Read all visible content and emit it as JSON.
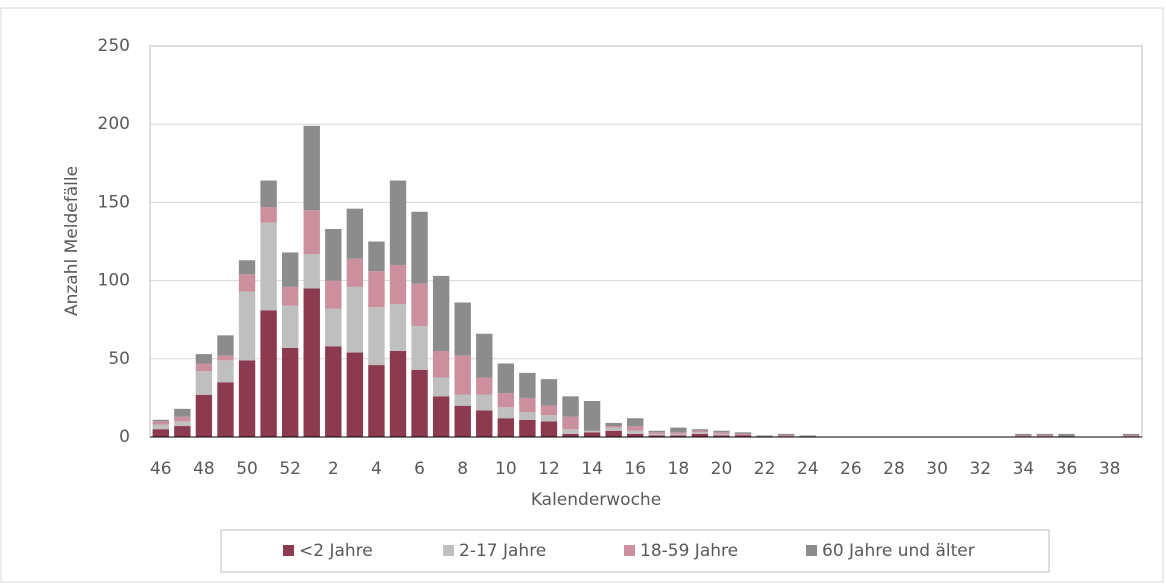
{
  "chart_data": {
    "type": "stacked-bar",
    "x_label": "Kalenderwoche",
    "y_label": "Anzahl Meldefälle",
    "categories": [
      "46",
      null,
      "48",
      null,
      "50",
      null,
      "52",
      null,
      "2",
      null,
      "4",
      null,
      "6",
      null,
      "8",
      null,
      "10",
      null,
      "12",
      null,
      "14",
      null,
      "16",
      null,
      "18",
      null,
      "20",
      null,
      "22",
      null,
      "24",
      null,
      "26",
      null,
      "28",
      null,
      "30",
      null,
      "32",
      null,
      "34",
      null,
      "36",
      null,
      "38",
      null
    ],
    "series": [
      {
        "name": "<2 Jahre",
        "color": "#8b3a4f",
        "values": [
          5,
          7,
          27,
          35,
          49,
          81,
          57,
          95,
          58,
          54,
          46,
          55,
          43,
          26,
          20,
          17,
          12,
          11,
          10,
          2,
          3,
          4,
          2,
          1,
          1,
          2,
          1,
          1,
          0,
          0,
          0,
          0,
          0,
          0,
          0,
          0,
          0,
          0,
          0,
          0,
          0,
          0,
          0,
          0,
          0,
          0
        ]
      },
      {
        "name": "2-17 Jahre",
        "color": "#bfbfbf",
        "values": [
          3,
          3,
          15,
          14,
          44,
          56,
          27,
          22,
          24,
          42,
          37,
          30,
          28,
          12,
          7,
          10,
          7,
          5,
          4,
          3,
          1,
          2,
          2,
          1,
          1,
          1,
          1,
          0,
          0,
          0,
          0,
          0,
          0,
          0,
          0,
          0,
          0,
          0,
          0,
          0,
          0,
          0,
          0,
          0,
          0,
          0
        ]
      },
      {
        "name": "18-59 Jahre",
        "color": "#cc8f9e",
        "values": [
          2,
          3,
          5,
          3,
          11,
          10,
          12,
          28,
          18,
          18,
          23,
          25,
          27,
          17,
          25,
          11,
          9,
          9,
          6,
          8,
          0,
          1,
          3,
          1,
          1,
          1,
          1,
          1,
          0,
          1,
          0,
          0,
          0,
          0,
          0,
          0,
          0,
          0,
          0,
          0,
          1,
          1,
          0,
          0,
          0,
          1
        ]
      },
      {
        "name": "60 Jahre und älter",
        "color": "#8c8c8c",
        "values": [
          1,
          5,
          6,
          13,
          9,
          17,
          22,
          54,
          33,
          32,
          19,
          54,
          46,
          48,
          34,
          28,
          19,
          16,
          17,
          13,
          19,
          2,
          5,
          1,
          3,
          1,
          1,
          1,
          1,
          1,
          1,
          0,
          0,
          0,
          0,
          0,
          0,
          0,
          0,
          0,
          1,
          1,
          2,
          0,
          0,
          1
        ]
      }
    ],
    "ylim": [
      0,
      250
    ],
    "yticks": [
      0,
      50,
      100,
      150,
      200,
      250
    ],
    "grid": true,
    "legend": "bottom"
  }
}
